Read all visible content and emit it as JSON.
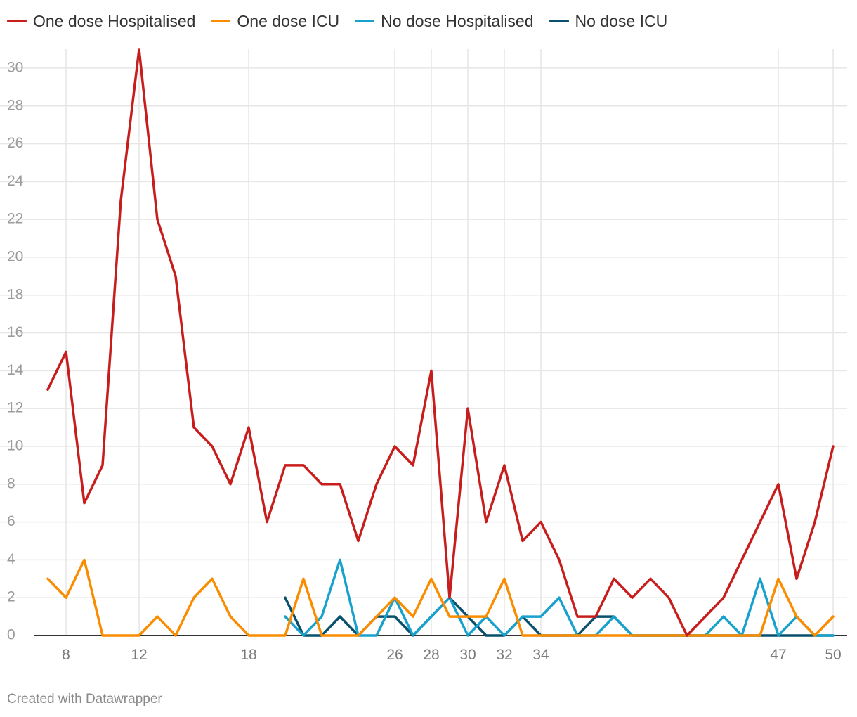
{
  "legend_items": [
    {
      "label": "One dose Hospitalised",
      "color": "#c71e1d"
    },
    {
      "label": "One dose ICU",
      "color": "#fa8c00"
    },
    {
      "label": "No dose Hospitalised",
      "color": "#18a1cd"
    },
    {
      "label": "No dose ICU",
      "color": "#09506d"
    }
  ],
  "footer": {
    "text": "Created with Datawrapper"
  },
  "chart_data": {
    "type": "line",
    "xlabel": "",
    "ylabel": "",
    "xlim": [
      7,
      50
    ],
    "ylim": [
      0,
      31
    ],
    "x_ticks": [
      8,
      12,
      18,
      26,
      28,
      30,
      32,
      34,
      47,
      50
    ],
    "y_ticks": [
      0,
      2,
      4,
      6,
      8,
      10,
      12,
      14,
      16,
      18,
      20,
      22,
      24,
      26,
      28,
      30
    ],
    "grid": true,
    "legend_position": "top-left",
    "series": [
      {
        "name": "One dose Hospitalised",
        "color": "#c71e1d",
        "x": [
          7,
          8,
          9,
          10,
          11,
          12,
          13,
          14,
          15,
          16,
          17,
          18,
          19,
          20,
          21,
          22,
          23,
          24,
          25,
          26,
          27,
          28,
          29,
          30,
          31,
          32,
          33,
          34,
          35,
          36,
          37,
          38,
          39,
          40,
          41,
          42,
          43,
          44,
          45,
          46,
          47,
          48,
          49,
          50
        ],
        "y": [
          13,
          15,
          7,
          9,
          23,
          31,
          22,
          19,
          11,
          10,
          8,
          11,
          6,
          9,
          9,
          8,
          8,
          5,
          8,
          10,
          9,
          14,
          2,
          12,
          6,
          9,
          5,
          6,
          4,
          1,
          1,
          3,
          2,
          3,
          2,
          0,
          1,
          2,
          4,
          6,
          8,
          3,
          6,
          10
        ]
      },
      {
        "name": "One dose ICU",
        "color": "#fa8c00",
        "x": [
          7,
          8,
          9,
          10,
          11,
          12,
          13,
          14,
          15,
          16,
          17,
          18,
          19,
          20,
          21,
          22,
          23,
          24,
          25,
          26,
          27,
          28,
          29,
          30,
          31,
          32,
          33,
          34,
          35,
          36,
          37,
          38,
          39,
          40,
          41,
          42,
          43,
          44,
          45,
          46,
          47,
          48,
          49,
          50
        ],
        "y": [
          3,
          2,
          4,
          0,
          0,
          0,
          1,
          0,
          2,
          3,
          1,
          0,
          0,
          0,
          3,
          0,
          0,
          0,
          1,
          2,
          1,
          3,
          1,
          1,
          1,
          3,
          0,
          0,
          0,
          0,
          0,
          0,
          0,
          0,
          0,
          0,
          0,
          0,
          0,
          0,
          3,
          1,
          0,
          1
        ]
      },
      {
        "name": "No dose Hospitalised",
        "color": "#18a1cd",
        "x": [
          20,
          21,
          22,
          23,
          24,
          25,
          26,
          27,
          28,
          29,
          30,
          31,
          32,
          33,
          34,
          35,
          36,
          37,
          38,
          39,
          40,
          41,
          42,
          43,
          44,
          45,
          46,
          47,
          48,
          49,
          50
        ],
        "y": [
          1,
          0,
          1,
          4,
          0,
          0,
          2,
          0,
          1,
          2,
          0,
          1,
          0,
          1,
          1,
          2,
          0,
          0,
          1,
          0,
          0,
          0,
          0,
          0,
          1,
          0,
          3,
          0,
          1,
          0,
          0
        ]
      },
      {
        "name": "No dose ICU",
        "color": "#09506d",
        "x": [
          20,
          21,
          22,
          23,
          24,
          25,
          26,
          27,
          28,
          29,
          30,
          31,
          32,
          33,
          34,
          35,
          36,
          37,
          38,
          39,
          40,
          41,
          42,
          43,
          44,
          45,
          46,
          47,
          48,
          49,
          50
        ],
        "y": [
          2,
          0,
          0,
          1,
          0,
          1,
          1,
          0,
          1,
          2,
          1,
          0,
          0,
          1,
          0,
          0,
          0,
          1,
          1,
          0,
          0,
          0,
          0,
          0,
          0,
          0,
          0,
          0,
          0,
          0,
          0
        ]
      }
    ]
  }
}
